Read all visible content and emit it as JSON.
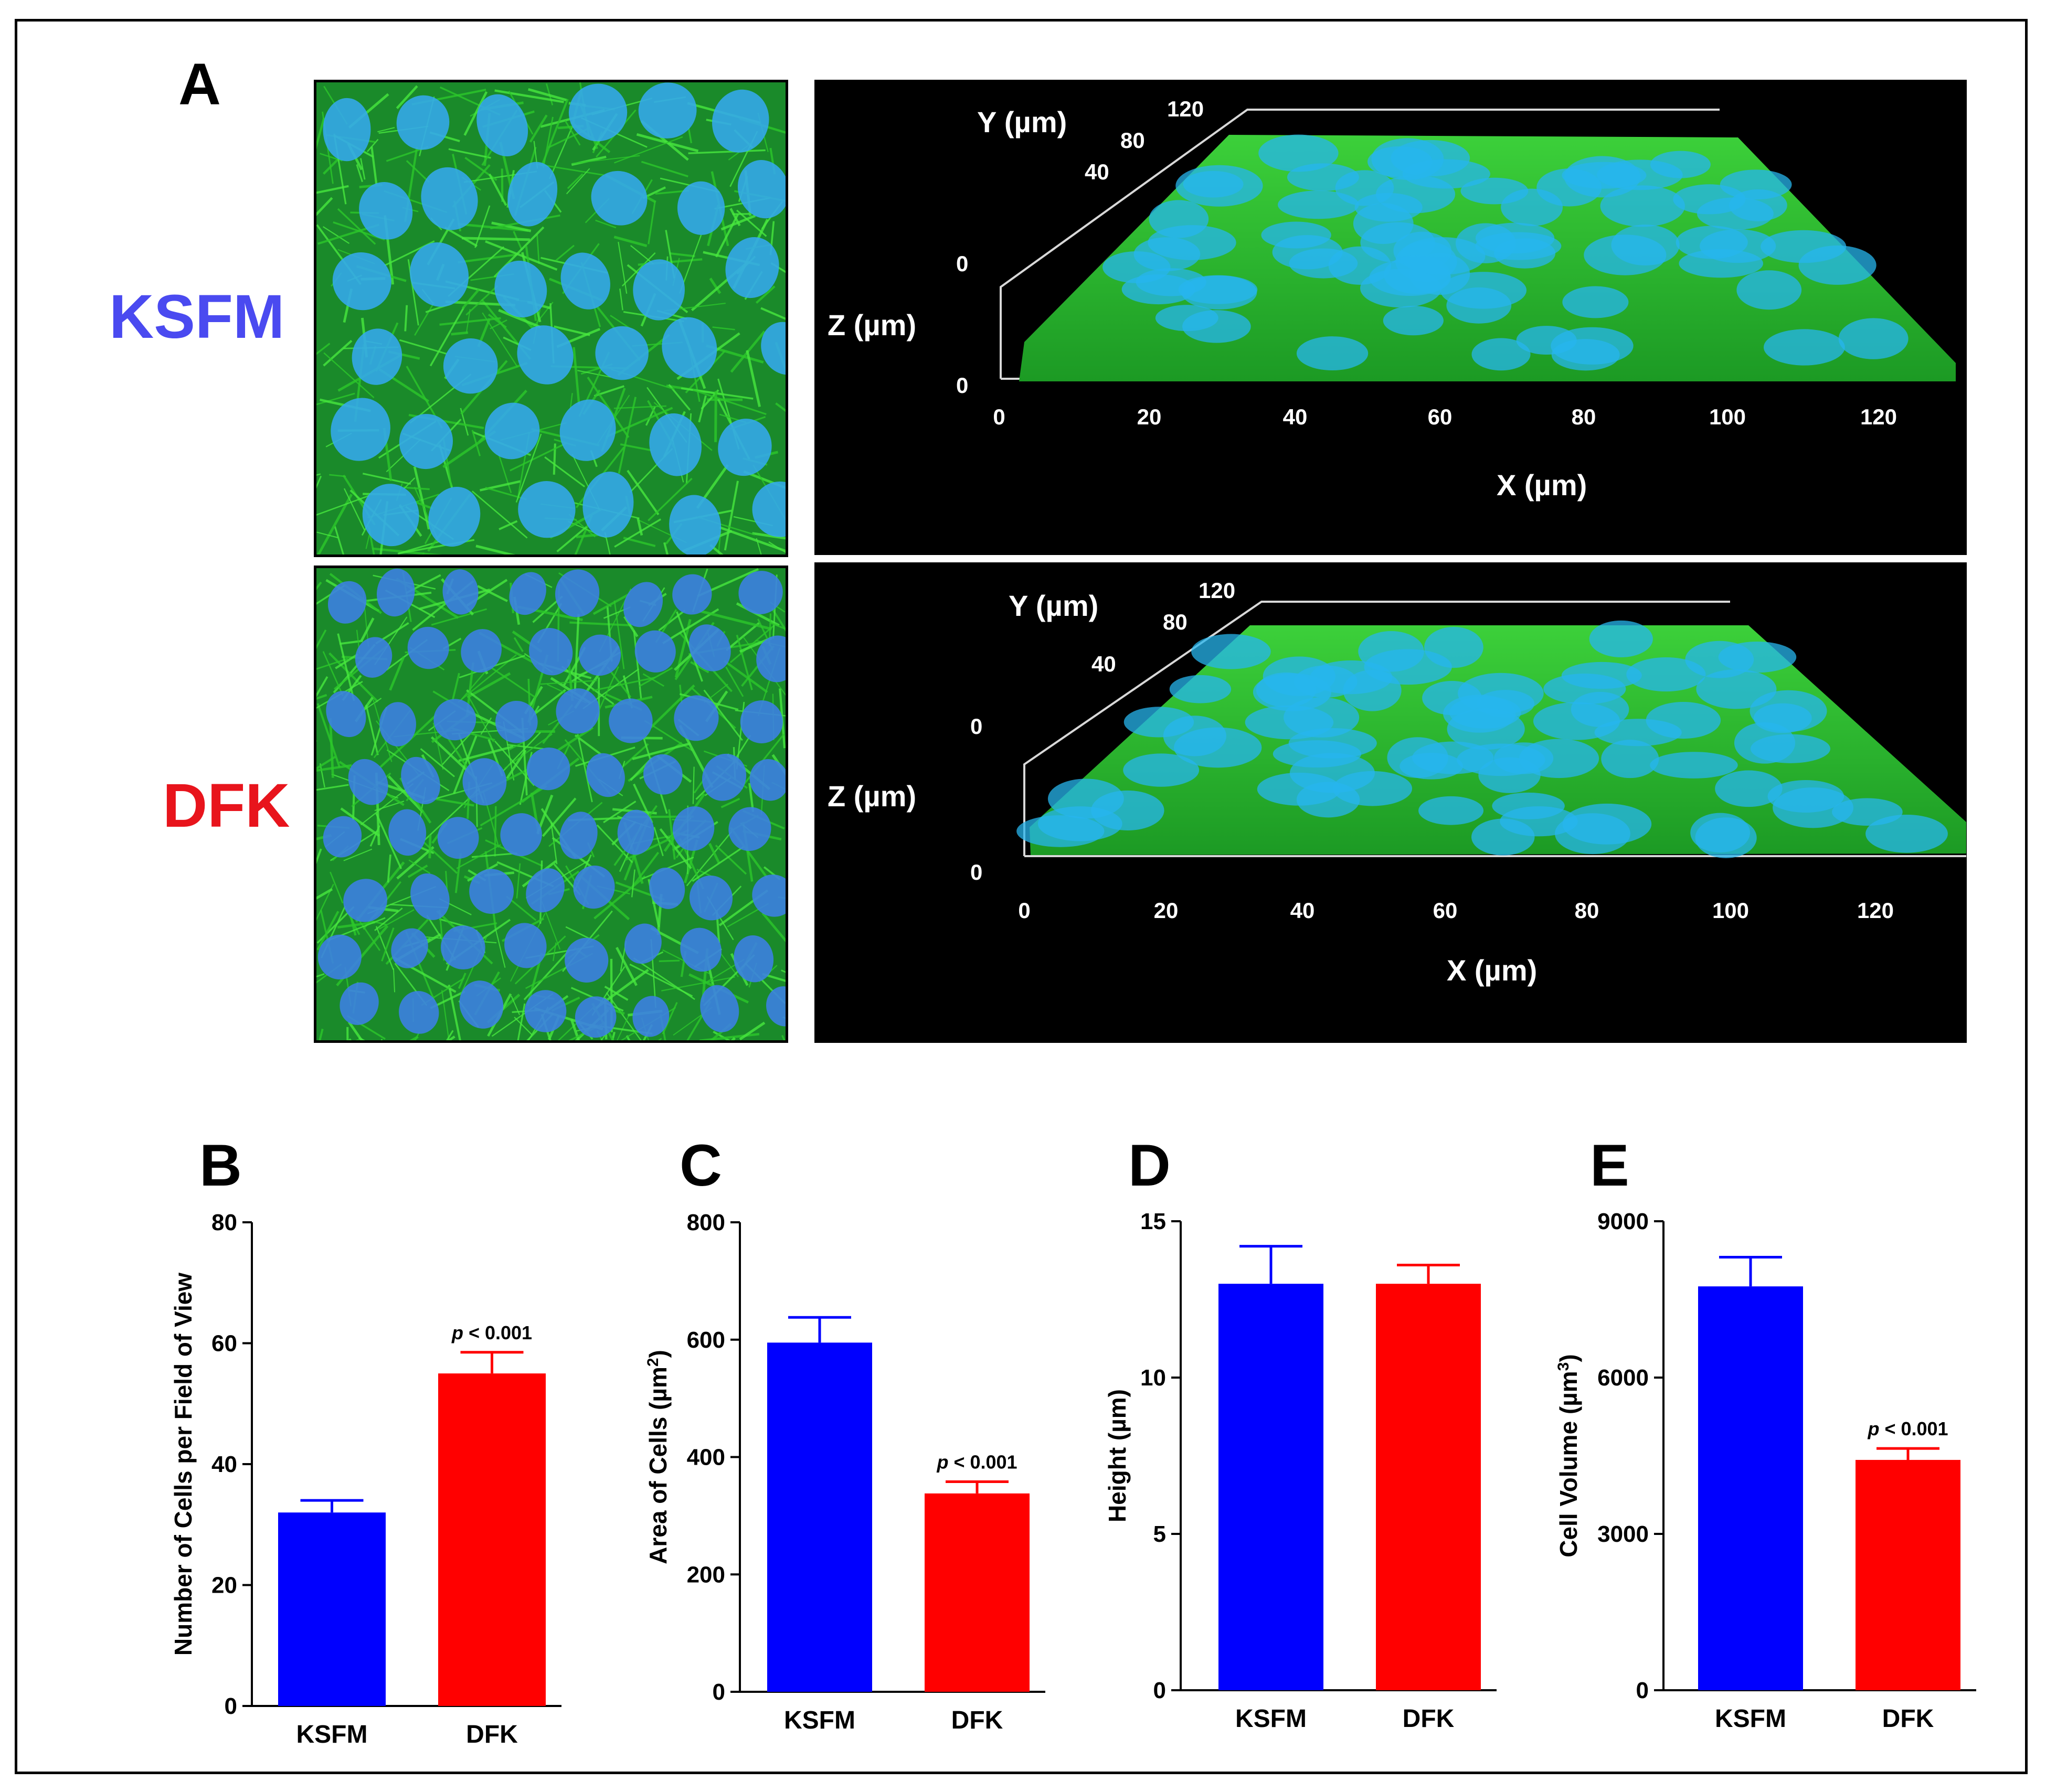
{
  "figure": {
    "panel_a_label": "A",
    "rows": [
      {
        "label": "KSFM",
        "color": "#4a4af0"
      },
      {
        "label": "DFK",
        "color": "#e8141c"
      }
    ],
    "render3d": {
      "y_axis_label": "Y (µm)",
      "z_axis_label": "Z (µm)",
      "x_axis_label": "X (µm)",
      "y_ticks": [
        "40",
        "80",
        "120"
      ],
      "z_ticks": [
        "0",
        "0"
      ],
      "x_ticks": [
        "0",
        "20",
        "40",
        "60",
        "80",
        "100",
        "120"
      ]
    },
    "colors": {
      "ksfm": "#0000ff",
      "dfk": "#ff0000",
      "actin": "#2fd12a",
      "nuclei": "#2aa8f0"
    }
  },
  "chart_data": [
    {
      "panel": "B",
      "type": "bar",
      "categories": [
        "KSFM",
        "DFK"
      ],
      "values": [
        32,
        55
      ],
      "errors": [
        2,
        3.5
      ],
      "ylabel": "Number of Cells per Field of View",
      "ylim": [
        0,
        80
      ],
      "yticks": [
        "0",
        "20",
        "40",
        "60",
        "80"
      ],
      "annotation": {
        "category": "DFK",
        "p": "p",
        "rest": " < 0.001"
      }
    },
    {
      "panel": "C",
      "type": "bar",
      "categories": [
        "KSFM",
        "DFK"
      ],
      "values": [
        595,
        338
      ],
      "errors": [
        43,
        20
      ],
      "ylabel": "Area of Cells (µm",
      "ylabel_sup": "2",
      "ylabel_end": ")",
      "ylim": [
        0,
        800
      ],
      "yticks": [
        "0",
        "200",
        "400",
        "600",
        "800"
      ],
      "annotation": {
        "category": "DFK",
        "p": "p",
        "rest": " < 0.001"
      }
    },
    {
      "panel": "D",
      "type": "bar",
      "categories": [
        "KSFM",
        "DFK"
      ],
      "values": [
        13,
        13
      ],
      "errors": [
        1.2,
        0.6
      ],
      "ylabel": "Height (µm)",
      "ylim": [
        0,
        15
      ],
      "yticks": [
        "0",
        "5",
        "10",
        "15"
      ],
      "annotation": null
    },
    {
      "panel": "E",
      "type": "bar",
      "categories": [
        "KSFM",
        "DFK"
      ],
      "values": [
        7750,
        4420
      ],
      "errors": [
        560,
        220
      ],
      "ylabel": "Cell Volume  (µm",
      "ylabel_sup": "3",
      "ylabel_end": ")",
      "ylim": [
        0,
        9000
      ],
      "yticks": [
        "0",
        "3000",
        "6000",
        "9000"
      ],
      "annotation": {
        "category": "DFK",
        "p": "p",
        "rest": " < 0.001"
      }
    }
  ]
}
